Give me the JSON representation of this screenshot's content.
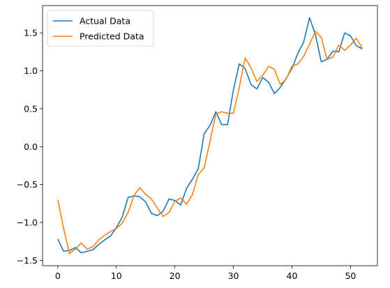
{
  "chart_data": {
    "type": "line",
    "x": [
      0,
      1,
      2,
      3,
      4,
      5,
      6,
      7,
      8,
      9,
      10,
      11,
      12,
      13,
      14,
      15,
      16,
      17,
      18,
      19,
      20,
      21,
      22,
      23,
      24,
      25,
      26,
      27,
      28,
      29,
      30,
      31,
      32,
      33,
      34,
      35,
      36,
      37,
      38,
      39,
      40,
      41,
      42,
      43,
      44,
      45,
      46,
      47,
      48,
      49,
      50,
      51,
      52
    ],
    "series": [
      {
        "name": "Actual Data",
        "color": "#1f77b4",
        "values": [
          -1.22,
          -1.38,
          -1.37,
          -1.33,
          -1.4,
          -1.38,
          -1.36,
          -1.29,
          -1.23,
          -1.18,
          -1.07,
          -0.93,
          -0.67,
          -0.65,
          -0.66,
          -0.73,
          -0.88,
          -0.91,
          -0.85,
          -0.69,
          -0.71,
          -0.77,
          -0.55,
          -0.43,
          -0.29,
          0.17,
          0.28,
          0.46,
          0.29,
          0.29,
          0.75,
          1.09,
          1.03,
          0.82,
          0.76,
          0.91,
          0.85,
          0.7,
          0.78,
          0.9,
          1.03,
          1.23,
          1.38,
          1.7,
          1.48,
          1.12,
          1.15,
          1.26,
          1.25,
          1.5,
          1.46,
          1.33,
          1.29
        ]
      },
      {
        "name": "Predicted Data",
        "color": "#ff7f0e",
        "values": [
          -0.7,
          -1.08,
          -1.41,
          -1.35,
          -1.27,
          -1.35,
          -1.32,
          -1.23,
          -1.17,
          -1.12,
          -1.08,
          -1.01,
          -0.87,
          -0.65,
          -0.54,
          -0.63,
          -0.69,
          -0.81,
          -0.92,
          -0.87,
          -0.72,
          -0.68,
          -0.76,
          -0.63,
          -0.37,
          -0.28,
          0.07,
          0.43,
          0.46,
          0.44,
          0.44,
          0.78,
          1.17,
          1.04,
          0.86,
          0.94,
          1.06,
          1.02,
          0.82,
          0.89,
          1.06,
          1.09,
          1.19,
          1.35,
          1.52,
          1.44,
          1.15,
          1.18,
          1.34,
          1.27,
          1.34,
          1.43,
          1.3
        ]
      }
    ],
    "xlim": [
      -2.6,
      54.6
    ],
    "ylim": [
      -1.57,
      1.86
    ],
    "xticks": [
      0,
      10,
      20,
      30,
      40,
      50
    ],
    "yticks": [
      -1.5,
      -1.0,
      -0.5,
      0.0,
      0.5,
      1.0,
      1.5
    ],
    "xtick_labels": [
      "0",
      "10",
      "20",
      "30",
      "40",
      "50"
    ],
    "ytick_labels": [
      "−1.5",
      "−1.0",
      "−0.5",
      "0.0",
      "0.5",
      "1.0",
      "1.5"
    ],
    "title": "",
    "xlabel": "",
    "ylabel": "",
    "grid": false,
    "legend_position": "top-left"
  }
}
